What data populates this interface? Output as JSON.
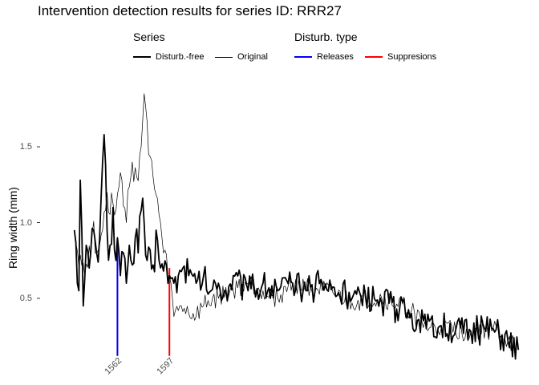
{
  "chart_data": {
    "type": "line",
    "title": "Intervention detection results for series ID: RRR27",
    "xlabel": "",
    "ylabel": "Ring width (mm)",
    "ylim": [
      0.05,
      1.95
    ],
    "xlim": [
      1511,
      1834
    ],
    "yticks": [
      {
        "value": 0.5,
        "label": "0.5"
      },
      {
        "value": 1.0,
        "label": "1.0"
      },
      {
        "value": 1.5,
        "label": "1.5"
      }
    ],
    "grid": false,
    "legend_position": "top",
    "legend": {
      "series_title": "Series",
      "series_entries": [
        "Disturb.-free",
        "Original"
      ],
      "disturbance_title": "Disturb. type",
      "disturbance_entries": [
        "Releases",
        "Suppresions"
      ]
    },
    "series": [
      {
        "name": "Original",
        "color": "#000000",
        "x_start": 1533,
        "x_end": 1832,
        "keypoints": [
          [
            1533,
            0.95
          ],
          [
            1540,
            0.65
          ],
          [
            1545,
            0.92
          ],
          [
            1550,
            0.85
          ],
          [
            1555,
            1.2
          ],
          [
            1560,
            1.05
          ],
          [
            1565,
            1.28
          ],
          [
            1568,
            1.0
          ],
          [
            1572,
            1.4
          ],
          [
            1575,
            1.3
          ],
          [
            1578,
            1.5
          ],
          [
            1580,
            1.85
          ],
          [
            1583,
            1.45
          ],
          [
            1586,
            1.3
          ],
          [
            1590,
            1.05
          ],
          [
            1593,
            0.8
          ],
          [
            1597,
            0.65
          ],
          [
            1600,
            0.38
          ],
          [
            1605,
            0.45
          ],
          [
            1610,
            0.4
          ],
          [
            1615,
            0.38
          ],
          [
            1620,
            0.45
          ],
          [
            1630,
            0.5
          ],
          [
            1640,
            0.55
          ],
          [
            1650,
            0.6
          ],
          [
            1660,
            0.55
          ],
          [
            1670,
            0.5
          ],
          [
            1680,
            0.6
          ],
          [
            1700,
            0.55
          ],
          [
            1720,
            0.47
          ],
          [
            1740,
            0.5
          ],
          [
            1760,
            0.42
          ],
          [
            1770,
            0.3
          ],
          [
            1780,
            0.3
          ],
          [
            1800,
            0.28
          ],
          [
            1815,
            0.3
          ],
          [
            1825,
            0.22
          ],
          [
            1832,
            0.16
          ]
        ]
      },
      {
        "name": "Disturb.-free",
        "color": "#000000",
        "x_start": 1533,
        "x_end": 1832,
        "keypoints": [
          [
            1533,
            0.95
          ],
          [
            1535,
            0.6
          ],
          [
            1536,
            0.55
          ],
          [
            1537,
            1.28
          ],
          [
            1538,
            0.95
          ],
          [
            1539,
            0.45
          ],
          [
            1541,
            0.85
          ],
          [
            1543,
            0.7
          ],
          [
            1546,
            0.95
          ],
          [
            1548,
            0.8
          ],
          [
            1550,
            0.9
          ],
          [
            1552,
            1.4
          ],
          [
            1553,
            1.58
          ],
          [
            1555,
            0.95
          ],
          [
            1557,
            0.85
          ],
          [
            1559,
            1.1
          ],
          [
            1561,
            0.75
          ],
          [
            1562,
            0.9
          ],
          [
            1564,
            0.65
          ],
          [
            1566,
            0.8
          ],
          [
            1568,
            0.6
          ],
          [
            1570,
            0.85
          ],
          [
            1572,
            0.72
          ],
          [
            1574,
            0.9
          ],
          [
            1576,
            0.8
          ],
          [
            1578,
            1.08
          ],
          [
            1580,
            1.0
          ],
          [
            1582,
            0.75
          ],
          [
            1584,
            0.82
          ],
          [
            1586,
            0.72
          ],
          [
            1588,
            0.95
          ],
          [
            1590,
            0.75
          ],
          [
            1593,
            0.68
          ],
          [
            1595,
            0.72
          ],
          [
            1597,
            0.65
          ],
          [
            1600,
            0.6
          ],
          [
            1603,
            0.65
          ],
          [
            1606,
            0.7
          ],
          [
            1610,
            0.65
          ],
          [
            1615,
            0.6
          ],
          [
            1620,
            0.65
          ],
          [
            1625,
            0.55
          ],
          [
            1630,
            0.6
          ],
          [
            1635,
            0.55
          ],
          [
            1640,
            0.65
          ],
          [
            1650,
            0.55
          ],
          [
            1660,
            0.6
          ],
          [
            1670,
            0.55
          ],
          [
            1680,
            0.6
          ],
          [
            1690,
            0.55
          ],
          [
            1700,
            0.6
          ],
          [
            1720,
            0.5
          ],
          [
            1740,
            0.47
          ],
          [
            1760,
            0.4
          ],
          [
            1770,
            0.3
          ],
          [
            1780,
            0.32
          ],
          [
            1790,
            0.3
          ],
          [
            1800,
            0.28
          ],
          [
            1815,
            0.3
          ],
          [
            1825,
            0.22
          ],
          [
            1832,
            0.16
          ]
        ]
      }
    ],
    "events": [
      {
        "year": 1562,
        "label": "1562",
        "type": "Releases",
        "color": "#0000ff",
        "y_top": 0.88,
        "y_bottom": 0.12
      },
      {
        "year": 1597,
        "label": "1597",
        "type": "Suppresions",
        "color": "#ff0000",
        "y_top": 0.7,
        "y_bottom": 0.12
      }
    ]
  }
}
